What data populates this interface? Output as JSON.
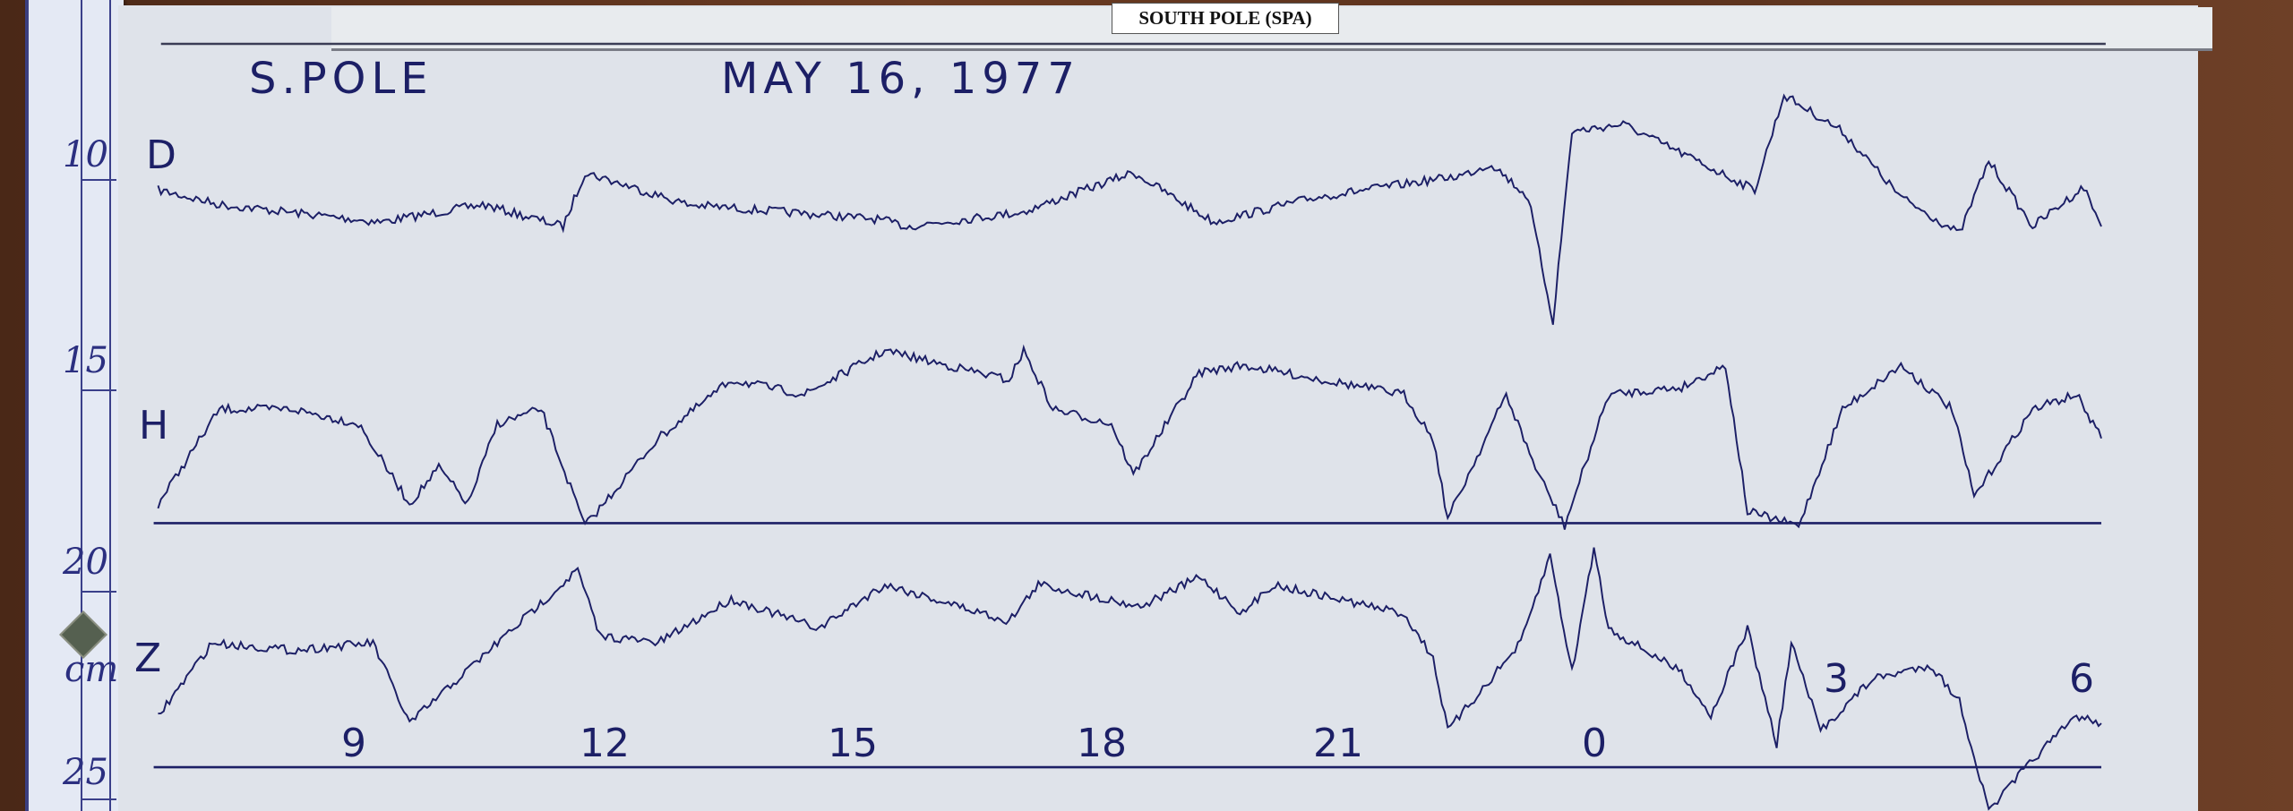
{
  "station_label": "SOUTH POLE (SPA)",
  "title_station": "S.POLE",
  "title_date": "MAY 16, 1977",
  "channels": [
    "D",
    "H",
    "Z"
  ],
  "hour_labels": [
    "9",
    "12",
    "15",
    "18",
    "21",
    "0",
    "3",
    "6"
  ],
  "ruler": {
    "labels": [
      "10",
      "15",
      "20",
      "cm",
      "25"
    ]
  },
  "colors": {
    "ink": "#1c1f66",
    "paper": "#dfe3ea",
    "wood": "#5a311c"
  }
}
